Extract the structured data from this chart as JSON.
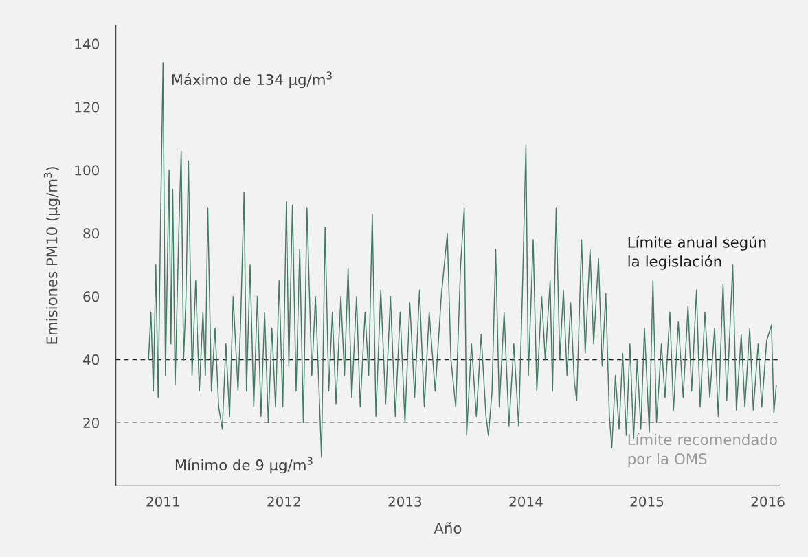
{
  "chart_data": {
    "type": "line",
    "xlabel": "Año",
    "ylabel": "Emisiones PM10 (µg/m$^{3}$)",
    "xlim": [
      2010.61,
      2016.1
    ],
    "ylim": [
      0,
      146
    ],
    "xticks": [
      2011,
      2012,
      2013,
      2014,
      2015,
      2016
    ],
    "yticks": [
      20,
      40,
      60,
      80,
      100,
      120,
      140
    ],
    "grid": false,
    "marker": "none",
    "line_style": "solid",
    "series": [
      {
        "color": "#437a66",
        "x": [
          2010.88,
          2010.9,
          2010.92,
          2010.94,
          2010.96,
          2010.98,
          2011.0,
          2011.02,
          2011.05,
          2011.065,
          2011.08,
          2011.1,
          2011.13,
          2011.15,
          2011.17,
          2011.19,
          2011.21,
          2011.24,
          2011.27,
          2011.3,
          2011.33,
          2011.35,
          2011.37,
          2011.4,
          2011.43,
          2011.46,
          2011.49,
          2011.52,
          2011.55,
          2011.58,
          2011.62,
          2011.64,
          2011.67,
          2011.69,
          2011.72,
          2011.75,
          2011.78,
          2011.81,
          2011.84,
          2011.87,
          2011.9,
          2011.93,
          2011.96,
          2011.99,
          2012.02,
          2012.04,
          2012.07,
          2012.1,
          2012.13,
          2012.16,
          2012.19,
          2012.23,
          2012.26,
          2012.29,
          2012.31,
          2012.34,
          2012.37,
          2012.4,
          2012.43,
          2012.47,
          2012.5,
          2012.53,
          2012.56,
          2012.6,
          2012.63,
          2012.67,
          2012.7,
          2012.73,
          2012.76,
          2012.8,
          2012.84,
          2012.88,
          2012.92,
          2012.96,
          2013.0,
          2013.04,
          2013.08,
          2013.12,
          2013.16,
          2013.2,
          2013.25,
          2013.3,
          2013.35,
          2013.38,
          2013.42,
          2013.46,
          2013.49,
          2013.51,
          2013.55,
          2013.59,
          2013.63,
          2013.67,
          2013.69,
          2013.72,
          2013.75,
          2013.78,
          2013.82,
          2013.86,
          2013.9,
          2013.94,
          2013.97,
          2014.0,
          2014.02,
          2014.06,
          2014.09,
          2014.13,
          2014.16,
          2014.2,
          2014.22,
          2014.25,
          2014.28,
          2014.31,
          2014.34,
          2014.37,
          2014.4,
          2014.42,
          2014.46,
          2014.49,
          2014.53,
          2014.56,
          2014.6,
          2014.63,
          2014.66,
          2014.69,
          2014.71,
          2014.74,
          2014.77,
          2014.8,
          2014.83,
          2014.86,
          2014.89,
          2014.92,
          2014.95,
          2014.98,
          2015.02,
          2015.05,
          2015.08,
          2015.12,
          2015.15,
          2015.19,
          2015.22,
          2015.26,
          2015.3,
          2015.34,
          2015.37,
          2015.41,
          2015.44,
          2015.48,
          2015.52,
          2015.56,
          2015.59,
          2015.63,
          2015.66,
          2015.71,
          2015.74,
          2015.78,
          2015.81,
          2015.85,
          2015.88,
          2015.92,
          2015.95,
          2015.99,
          2016.03,
          2016.05,
          2016.07
        ],
        "values": [
          40,
          55,
          30,
          70,
          28,
          85,
          134,
          35,
          100,
          45,
          94,
          32,
          80,
          106,
          40,
          60,
          103,
          35,
          65,
          30,
          55,
          35,
          88,
          30,
          50,
          25,
          18,
          45,
          22,
          60,
          30,
          50,
          93,
          30,
          70,
          25,
          60,
          22,
          55,
          20,
          50,
          25,
          65,
          25,
          90,
          38,
          89,
          30,
          75,
          20,
          88,
          35,
          60,
          30,
          9,
          82,
          30,
          55,
          26,
          60,
          35,
          69,
          28,
          60,
          25,
          55,
          35,
          86,
          22,
          62,
          26,
          60,
          22,
          55,
          20,
          58,
          28,
          62,
          25,
          55,
          30,
          60,
          80,
          40,
          25,
          70,
          88,
          16,
          45,
          22,
          48,
          22,
          16,
          30,
          75,
          25,
          55,
          19,
          45,
          19,
          60,
          108,
          35,
          78,
          30,
          60,
          40,
          65,
          30,
          88,
          40,
          62,
          35,
          58,
          33,
          27,
          78,
          42,
          75,
          45,
          72,
          38,
          61,
          22,
          12,
          35,
          18,
          42,
          16,
          45,
          15,
          40,
          18,
          50,
          17,
          65,
          20,
          45,
          28,
          55,
          24,
          52,
          28,
          57,
          30,
          62,
          25,
          55,
          28,
          50,
          22,
          64,
          27,
          70,
          24,
          48,
          25,
          50,
          24,
          45,
          25,
          46,
          51,
          23,
          32
        ]
      }
    ],
    "ref_lines": [
      {
        "axis": "y",
        "value": 40,
        "label": "Límite anual según la legislación",
        "color": "#1a1a1a",
        "line_style": "dashed"
      },
      {
        "axis": "y",
        "value": 20,
        "label": "Límite recomendado por la OMS",
        "color": "#9a9a9a",
        "line_style": "dashed"
      }
    ],
    "annotations": [
      {
        "text": "Máximo de 134 µg/m$^{3}$",
        "x": 2011.0,
        "y": 134
      },
      {
        "text": "Mínimo de 9 µg/m$^{3}$",
        "x": 2012.31,
        "y": 9
      }
    ]
  }
}
